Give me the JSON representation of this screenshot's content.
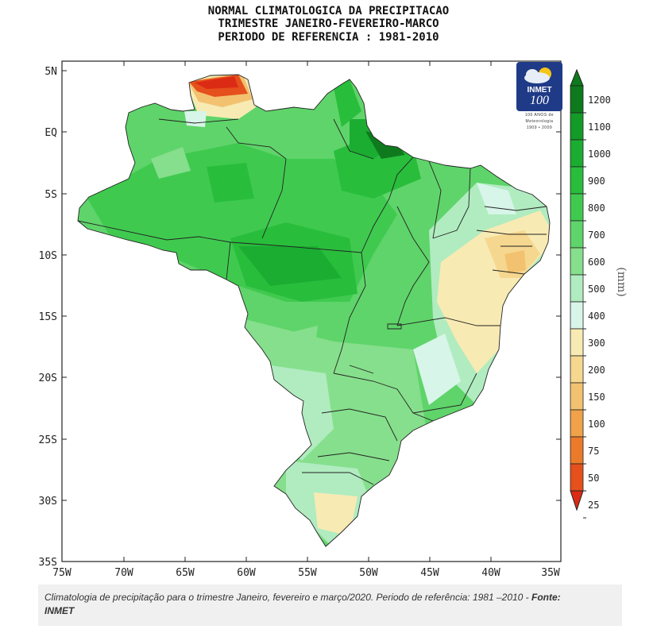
{
  "title": {
    "line1": "NORMAL CLIMATOLOGICA DA PRECIPITACAO",
    "line2": "TRIMESTRE JANEIRO-FEVEREIRO-MARCO",
    "line3": "PERIODO DE REFERENCIA : 1981-2010"
  },
  "logo": {
    "name": "INMET",
    "number": "100",
    "subtitle_line1": "100 ANOS de",
    "subtitle_line2": "Meteorologia",
    "subtitle_line3": "1909 • 2009"
  },
  "axes": {
    "lat_labels": [
      "5N",
      "EQ",
      "5S",
      "10S",
      "15S",
      "20S",
      "25S",
      "30S",
      "35S"
    ],
    "lon_labels": [
      "75W",
      "70W",
      "65W",
      "60W",
      "55W",
      "50W",
      "45W",
      "40W",
      "35W"
    ]
  },
  "colorbar": {
    "unit": "(mm)",
    "levels": [
      "1200",
      "1100",
      "1000",
      "900",
      "800",
      "700",
      "600",
      "500",
      "400",
      "300",
      "200",
      "150",
      "100",
      "75",
      "50",
      "25"
    ],
    "colors": [
      "#0e7a1d",
      "#139a27",
      "#1aad31",
      "#29bd3c",
      "#3fca4f",
      "#5fd46a",
      "#86df8c",
      "#b0ecc0",
      "#d7f5e8",
      "#f8eab3",
      "#f6d78f",
      "#f2c270",
      "#efa24a",
      "#eb7a2a",
      "#e5501c",
      "#dc2b14"
    ]
  },
  "caption": {
    "text": "Climatologia de precipitação para o trimestre Janeiro, fevereiro e março/2020. Periodo de referência: 1981 –2010 - ",
    "source_label": "Fonte:",
    "source": "INMET"
  }
}
